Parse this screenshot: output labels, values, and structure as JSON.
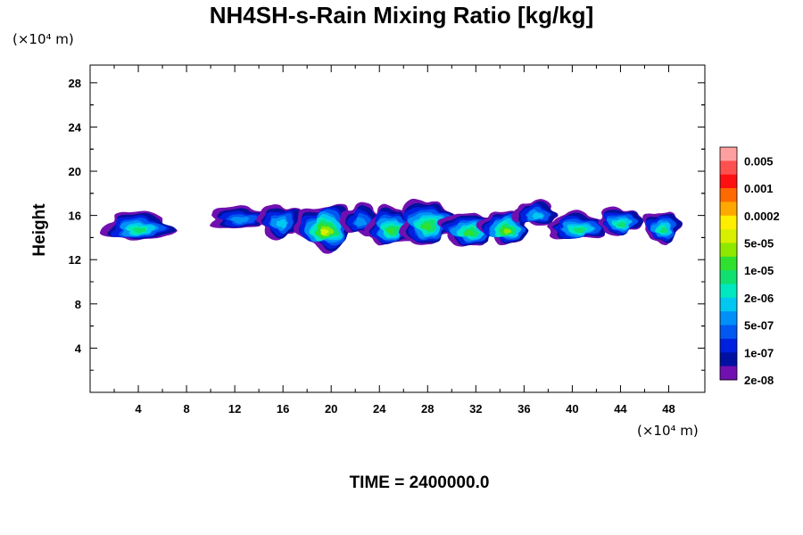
{
  "chart_data": {
    "type": "heatmap",
    "title": "NH4SH-s-Rain Mixing Ratio [kg/kg]",
    "ylabel": "Height",
    "x_unit": "(×10⁴ m)",
    "y_unit": "(×10⁴ m)",
    "xlim": [
      0,
      51
    ],
    "ylim": [
      0,
      29.6
    ],
    "x_ticks": [
      "4",
      "8",
      "12",
      "16",
      "20",
      "24",
      "28",
      "32",
      "36",
      "40",
      "44",
      "48"
    ],
    "y_ticks": [
      "4",
      "8",
      "12",
      "16",
      "20",
      "24",
      "28"
    ],
    "time_label": "TIME = 2400000.0",
    "colorbar": {
      "labels": [
        "0.005",
        "0.001",
        "0.0002",
        "5e-05",
        "1e-05",
        "2e-06",
        "5e-07",
        "1e-07",
        "2e-08"
      ],
      "colors": [
        "#ffa0a0",
        "#ff5050",
        "#ff1010",
        "#ff6a00",
        "#ffa800",
        "#ffee00",
        "#d8f000",
        "#8ee800",
        "#30e030",
        "#10e070",
        "#00e8c0",
        "#00c8f0",
        "#0090f8",
        "#0058f0",
        "#0020e0",
        "#0010a0",
        "#7010b0"
      ]
    },
    "blobs": [
      {
        "x": 4.0,
        "y": 15.0,
        "rx": 2.8,
        "ry": 1.3,
        "level": 7
      },
      {
        "x": 12.5,
        "y": 15.8,
        "rx": 2.6,
        "ry": 1.0,
        "level": 4
      },
      {
        "x": 15.8,
        "y": 15.5,
        "rx": 1.8,
        "ry": 1.5,
        "level": 5
      },
      {
        "x": 19.5,
        "y": 15.0,
        "rx": 2.3,
        "ry": 2.0,
        "level": 10
      },
      {
        "x": 22.5,
        "y": 15.6,
        "rx": 1.6,
        "ry": 1.4,
        "level": 4
      },
      {
        "x": 25.0,
        "y": 15.0,
        "rx": 2.0,
        "ry": 1.7,
        "level": 8
      },
      {
        "x": 28.0,
        "y": 15.4,
        "rx": 2.3,
        "ry": 2.0,
        "level": 8
      },
      {
        "x": 31.5,
        "y": 14.8,
        "rx": 2.3,
        "ry": 1.5,
        "level": 8
      },
      {
        "x": 34.5,
        "y": 15.0,
        "rx": 2.0,
        "ry": 1.5,
        "level": 9
      },
      {
        "x": 37.0,
        "y": 16.2,
        "rx": 1.8,
        "ry": 1.1,
        "level": 5
      },
      {
        "x": 40.5,
        "y": 15.0,
        "rx": 2.5,
        "ry": 1.2,
        "level": 7
      },
      {
        "x": 44.0,
        "y": 15.5,
        "rx": 1.8,
        "ry": 1.2,
        "level": 7
      },
      {
        "x": 47.5,
        "y": 15.0,
        "rx": 1.5,
        "ry": 1.4,
        "level": 7
      }
    ]
  }
}
